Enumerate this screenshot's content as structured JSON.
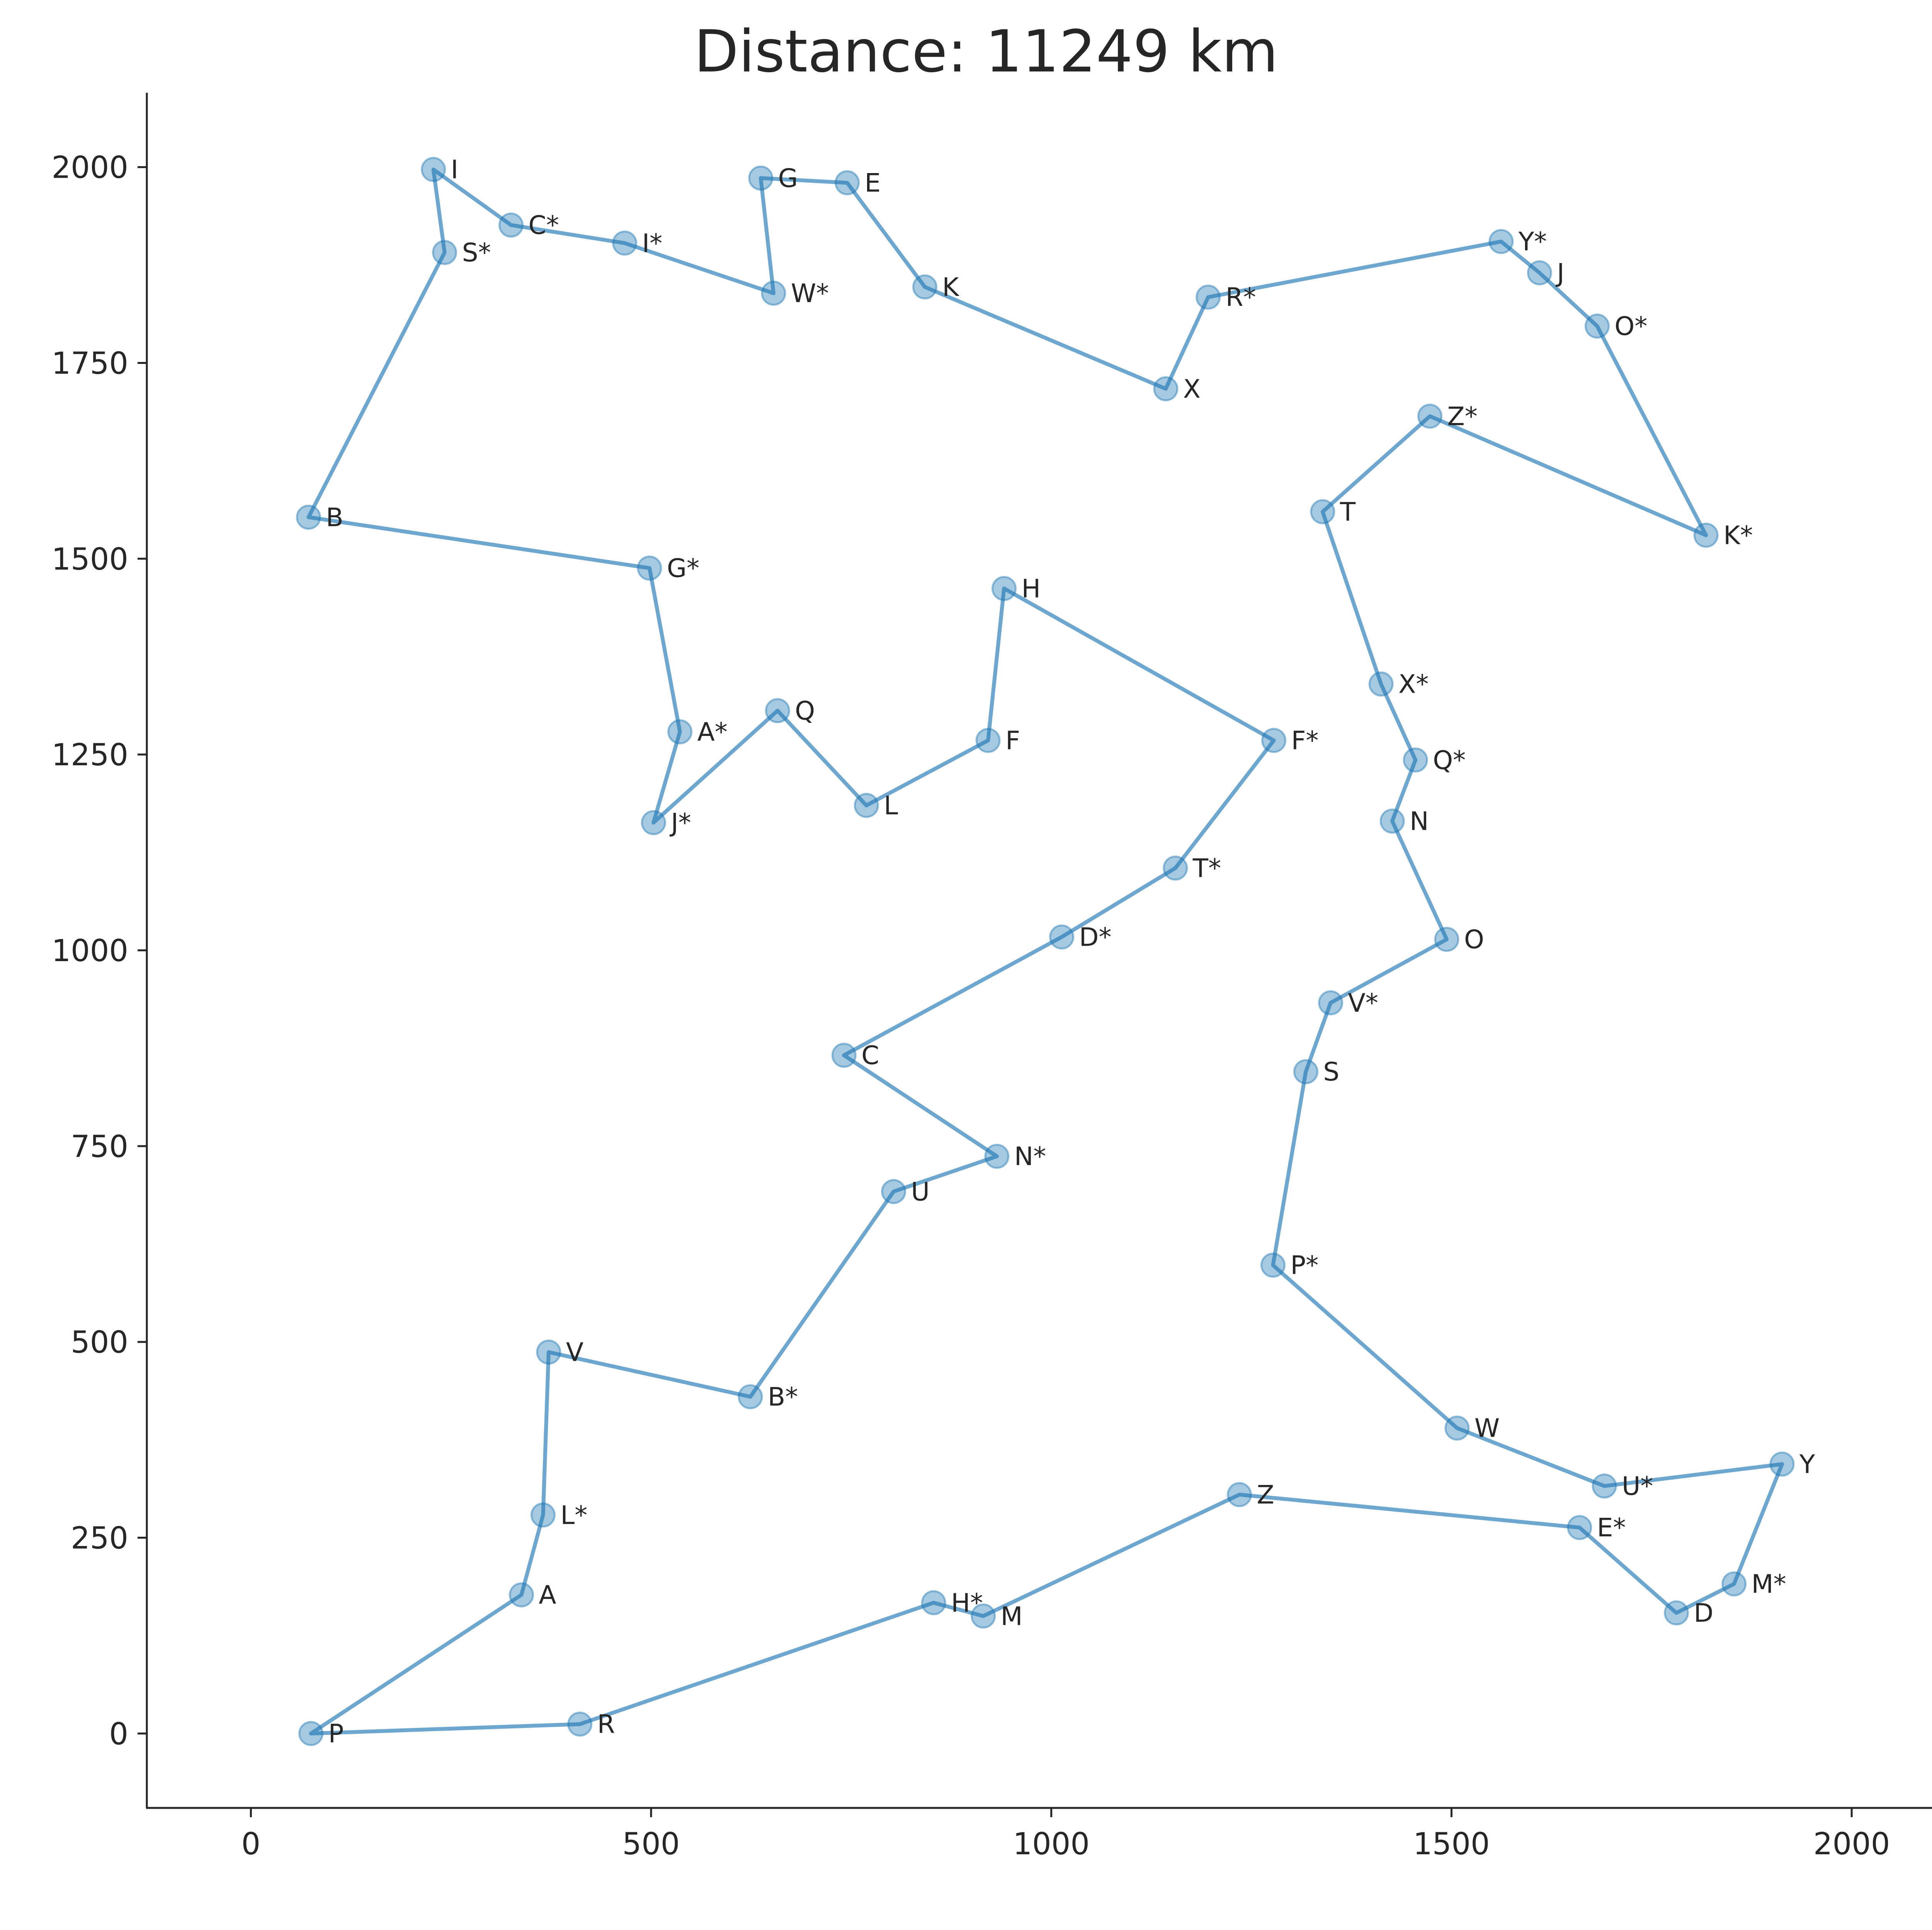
{
  "chart_data": {
    "type": "scatter",
    "title": "Distance: 11249 km",
    "xlabel": "",
    "ylabel": "",
    "xlim": [
      -130,
      2110
    ],
    "ylim": [
      -95,
      2095
    ],
    "xticks": [
      0,
      500,
      1000,
      1500,
      2000
    ],
    "yticks": [
      0,
      250,
      500,
      750,
      1000,
      1250,
      1500,
      1750,
      2000
    ],
    "grid": false,
    "colors": {
      "route": "#1f77b4",
      "point": "#1f77b4",
      "text": "#262626"
    },
    "points": [
      {
        "label": "P",
        "x": 75,
        "y": 0
      },
      {
        "label": "A",
        "x": 338,
        "y": 177
      },
      {
        "label": "L*",
        "x": 365,
        "y": 279
      },
      {
        "label": "V",
        "x": 372,
        "y": 487
      },
      {
        "label": "B*",
        "x": 624,
        "y": 430
      },
      {
        "label": "U",
        "x": 803,
        "y": 692
      },
      {
        "label": "N*",
        "x": 932,
        "y": 737
      },
      {
        "label": "C",
        "x": 741,
        "y": 866
      },
      {
        "label": "D*",
        "x": 1013,
        "y": 1017
      },
      {
        "label": "T*",
        "x": 1155,
        "y": 1105
      },
      {
        "label": "F*",
        "x": 1278,
        "y": 1268
      },
      {
        "label": "H",
        "x": 941,
        "y": 1462
      },
      {
        "label": "F",
        "x": 921,
        "y": 1268
      },
      {
        "label": "L",
        "x": 769,
        "y": 1185
      },
      {
        "label": "Q",
        "x": 658,
        "y": 1306
      },
      {
        "label": "J*",
        "x": 503,
        "y": 1163
      },
      {
        "label": "A*",
        "x": 536,
        "y": 1279
      },
      {
        "label": "G*",
        "x": 498,
        "y": 1488
      },
      {
        "label": "B",
        "x": 72,
        "y": 1553
      },
      {
        "label": "S*",
        "x": 242,
        "y": 1891
      },
      {
        "label": "I",
        "x": 228,
        "y": 1997
      },
      {
        "label": "C*",
        "x": 325,
        "y": 1926
      },
      {
        "label": "I*",
        "x": 467,
        "y": 1903
      },
      {
        "label": "W*",
        "x": 653,
        "y": 1839
      },
      {
        "label": "G",
        "x": 637,
        "y": 1986
      },
      {
        "label": "E",
        "x": 745,
        "y": 1980
      },
      {
        "label": "K",
        "x": 842,
        "y": 1847
      },
      {
        "label": "X",
        "x": 1143,
        "y": 1717
      },
      {
        "label": "R*",
        "x": 1196,
        "y": 1834
      },
      {
        "label": "Y*",
        "x": 1562,
        "y": 1905
      },
      {
        "label": "J",
        "x": 1610,
        "y": 1865
      },
      {
        "label": "O*",
        "x": 1682,
        "y": 1797
      },
      {
        "label": "K*",
        "x": 1818,
        "y": 1530
      },
      {
        "label": "Z*",
        "x": 1473,
        "y": 1682
      },
      {
        "label": "T",
        "x": 1339,
        "y": 1560
      },
      {
        "label": "X*",
        "x": 1412,
        "y": 1340
      },
      {
        "label": "Q*",
        "x": 1455,
        "y": 1243
      },
      {
        "label": "N",
        "x": 1426,
        "y": 1165
      },
      {
        "label": "O",
        "x": 1494,
        "y": 1014
      },
      {
        "label": "V*",
        "x": 1349,
        "y": 933
      },
      {
        "label": "S",
        "x": 1318,
        "y": 845
      },
      {
        "label": "P*",
        "x": 1277,
        "y": 598
      },
      {
        "label": "W",
        "x": 1507,
        "y": 390
      },
      {
        "label": "U*",
        "x": 1691,
        "y": 316
      },
      {
        "label": "Y",
        "x": 1913,
        "y": 344
      },
      {
        "label": "M*",
        "x": 1853,
        "y": 191
      },
      {
        "label": "D",
        "x": 1781,
        "y": 154
      },
      {
        "label": "E*",
        "x": 1660,
        "y": 263
      },
      {
        "label": "Z",
        "x": 1235,
        "y": 305
      },
      {
        "label": "M",
        "x": 915,
        "y": 150
      },
      {
        "label": "H*",
        "x": 853,
        "y": 167
      },
      {
        "label": "R",
        "x": 411,
        "y": 12
      }
    ],
    "closed": true
  }
}
